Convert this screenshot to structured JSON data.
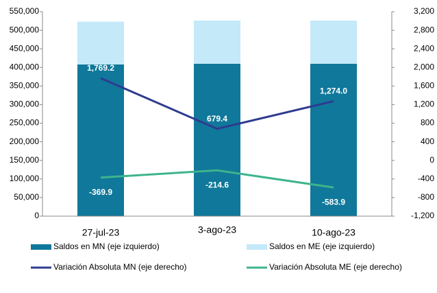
{
  "chart_data": {
    "type": "bar",
    "categories": [
      "27-jul-23",
      "3-ago-23",
      "10-ago-23"
    ],
    "series": [
      {
        "name": "Saldos en MN (eje izquierdo)",
        "color": "#10789a",
        "type": "bar",
        "values": [
          408000,
          410000,
          410000
        ]
      },
      {
        "name": "Saldos en ME (eje izquierdo)",
        "color": "#c4e9f9",
        "type": "bar",
        "values": [
          115000,
          116000,
          116000
        ]
      },
      {
        "name": "Variación Absoluta MN (eje derecho)",
        "color": "#2e3b8f",
        "type": "line",
        "axis": "y2",
        "values": [
          1769.2,
          679.4,
          1274.0
        ],
        "value_labels": [
          "1,769.2",
          "679.4",
          "1,274.0"
        ]
      },
      {
        "name": "Variación Absoluta ME (eje derecho)",
        "color": "#3db48c",
        "type": "line",
        "axis": "y2",
        "values": [
          -369.9,
          -214.6,
          -583.9
        ],
        "value_labels": [
          "-369.9",
          "-214.6",
          "-583.9"
        ]
      }
    ],
    "stacked": true,
    "ylim": [
      0,
      550000
    ],
    "yticks": [
      0,
      {
        "value": 50000,
        "label": "50,000"
      },
      {
        "value": 100000,
        "label": "100,000"
      },
      {
        "value": 150000,
        "label": "150,000"
      },
      {
        "value": 200000,
        "label": "200,000"
      },
      {
        "value": 250000,
        "label": "250,000"
      },
      {
        "value": 300000,
        "label": "300,000"
      },
      {
        "value": 350000,
        "label": "350,000"
      },
      {
        "value": 400000,
        "label": "400,000"
      },
      {
        "value": 450000,
        "label": "450,000"
      },
      {
        "value": 500000,
        "label": "500,000"
      },
      {
        "value": 550000,
        "label": "550,000"
      }
    ],
    "y2lim": [
      -1200,
      3200
    ],
    "y2ticks": [
      {
        "value": -1200,
        "label": "-1,200"
      },
      -800,
      -400,
      0,
      400,
      800,
      {
        "value": 1200,
        "label": "1,200"
      },
      {
        "value": 1600,
        "label": "1,600"
      },
      {
        "value": 2000,
        "label": "2,000"
      },
      {
        "value": 2400,
        "label": "2,400"
      },
      {
        "value": 2800,
        "label": "2,800"
      },
      {
        "value": 3200,
        "label": "3,200"
      }
    ],
    "grid": false
  }
}
